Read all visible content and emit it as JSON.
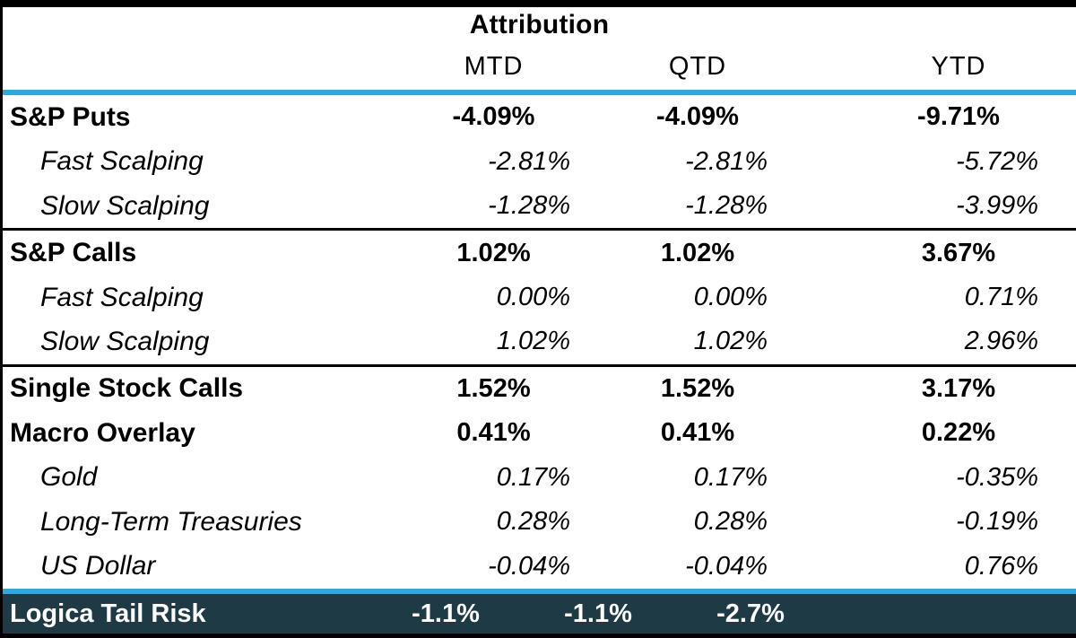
{
  "chart_data": {
    "type": "table",
    "title": "Attribution",
    "columns": [
      "MTD",
      "QTD",
      "YTD"
    ],
    "rows": [
      {
        "label": "S&P Puts",
        "style": "main",
        "values": [
          "-4.09%",
          "-4.09%",
          "-9.71%"
        ]
      },
      {
        "label": "Fast Scalping",
        "style": "sub",
        "values": [
          "-2.81%",
          "-2.81%",
          "-5.72%"
        ]
      },
      {
        "label": "Slow Scalping",
        "style": "sub",
        "values": [
          "-1.28%",
          "-1.28%",
          "-3.99%"
        ]
      },
      {
        "label": "S&P Calls",
        "style": "main",
        "values": [
          "1.02%",
          "1.02%",
          "3.67%"
        ]
      },
      {
        "label": "Fast Scalping",
        "style": "sub",
        "values": [
          "0.00%",
          "0.00%",
          "0.71%"
        ]
      },
      {
        "label": "Slow Scalping",
        "style": "sub",
        "values": [
          "1.02%",
          "1.02%",
          "2.96%"
        ]
      },
      {
        "label": "Single Stock Calls",
        "style": "main",
        "values": [
          "1.52%",
          "1.52%",
          "3.17%"
        ]
      },
      {
        "label": "Macro Overlay",
        "style": "main",
        "values": [
          "0.41%",
          "0.41%",
          "0.22%"
        ]
      },
      {
        "label": "Gold",
        "style": "sub",
        "values": [
          "0.17%",
          "0.17%",
          "-0.35%"
        ]
      },
      {
        "label": "Long-Term Treasuries",
        "style": "sub",
        "values": [
          "0.28%",
          "0.28%",
          "-0.19%"
        ]
      },
      {
        "label": "US Dollar",
        "style": "sub",
        "values": [
          "-0.04%",
          "-0.04%",
          "0.76%"
        ]
      }
    ],
    "footer": {
      "label": "Logica Tail Risk",
      "values": [
        "-1.1%",
        "-1.1%",
        "-2.7%"
      ]
    },
    "layout": {
      "section_separators_after_rows": [
        2,
        5
      ],
      "grid": "off",
      "header_rule": "cyan line below column headers",
      "footer_rule": "cyan line above footer row"
    }
  },
  "colors": {
    "accent_line": "#29ABE2",
    "border": "#000000",
    "footer_bg": "#1E3A44",
    "footer_text": "#FFFFFF",
    "body_text": "#000000",
    "background": "#FFFFFF"
  }
}
